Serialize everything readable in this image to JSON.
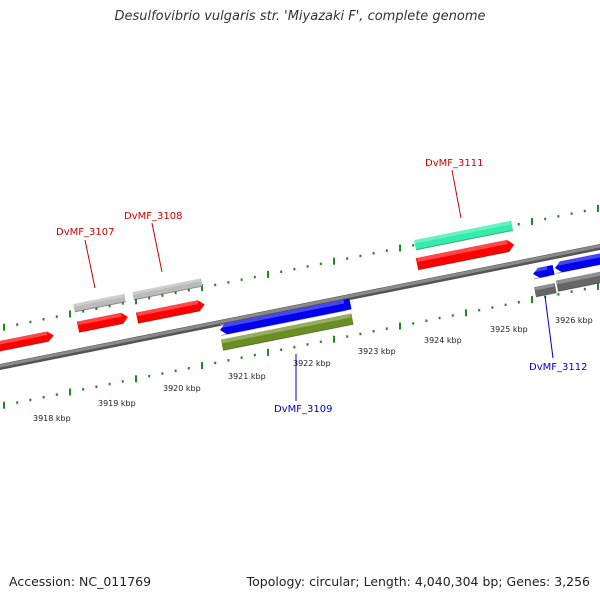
{
  "title": "Desulfovibrio vulgaris str. 'Miyazaki F', complete genome",
  "footer": {
    "accession": "Accession: NC_011769",
    "summary": "Topology: circular; Length: 4,040,304 bp; Genes: 3,256"
  },
  "colors": {
    "tick_green": "#1f8a1f",
    "backbone": "#8a8a8a",
    "forward_label": "#cc0000",
    "reverse_label": "#0000cc"
  },
  "scale": {
    "labels": [
      "3918 kbp",
      "3919 kbp",
      "3920 kbp",
      "3921 kbp",
      "3922 kbp",
      "3923 kbp",
      "3924 kbp",
      "3925 kbp",
      "3926 kbp"
    ]
  },
  "features": {
    "forward": [
      {
        "type": "CDS",
        "color": "#ff0000",
        "arrow": "right"
      },
      {
        "type": "gene",
        "color": "#bbbbbb",
        "label": ""
      },
      {
        "type": "CDS",
        "color": "#ff0000",
        "arrow": "right"
      },
      {
        "type": "gene",
        "color": "#bbbbbb",
        "label": ""
      },
      {
        "type": "CDS",
        "color": "#ff0000",
        "arrow": "right"
      },
      {
        "type": "gene",
        "color": "#33eeaa",
        "label": ""
      },
      {
        "type": "CDS",
        "color": "#ff0000",
        "arrow": "right"
      }
    ],
    "reverse": [
      {
        "type": "CDS",
        "color": "#0000ee",
        "arrow": "left"
      },
      {
        "type": "gene",
        "color": "#6b8e23"
      },
      {
        "type": "CDS",
        "color": "#0000ee",
        "arrow": "left"
      },
      {
        "type": "gene",
        "color": "#666666"
      },
      {
        "type": "CDS",
        "color": "#0000ee",
        "arrow": "left"
      },
      {
        "type": "gene",
        "color": "#666666"
      }
    ]
  },
  "gene_labels": [
    {
      "text": "DvMF_3107",
      "strand": "forward"
    },
    {
      "text": "DvMF_3108",
      "strand": "forward"
    },
    {
      "text": "DvMF_3111",
      "strand": "forward"
    },
    {
      "text": "DvMF_3109",
      "strand": "reverse"
    },
    {
      "text": "DvMF_3112",
      "strand": "reverse"
    }
  ]
}
